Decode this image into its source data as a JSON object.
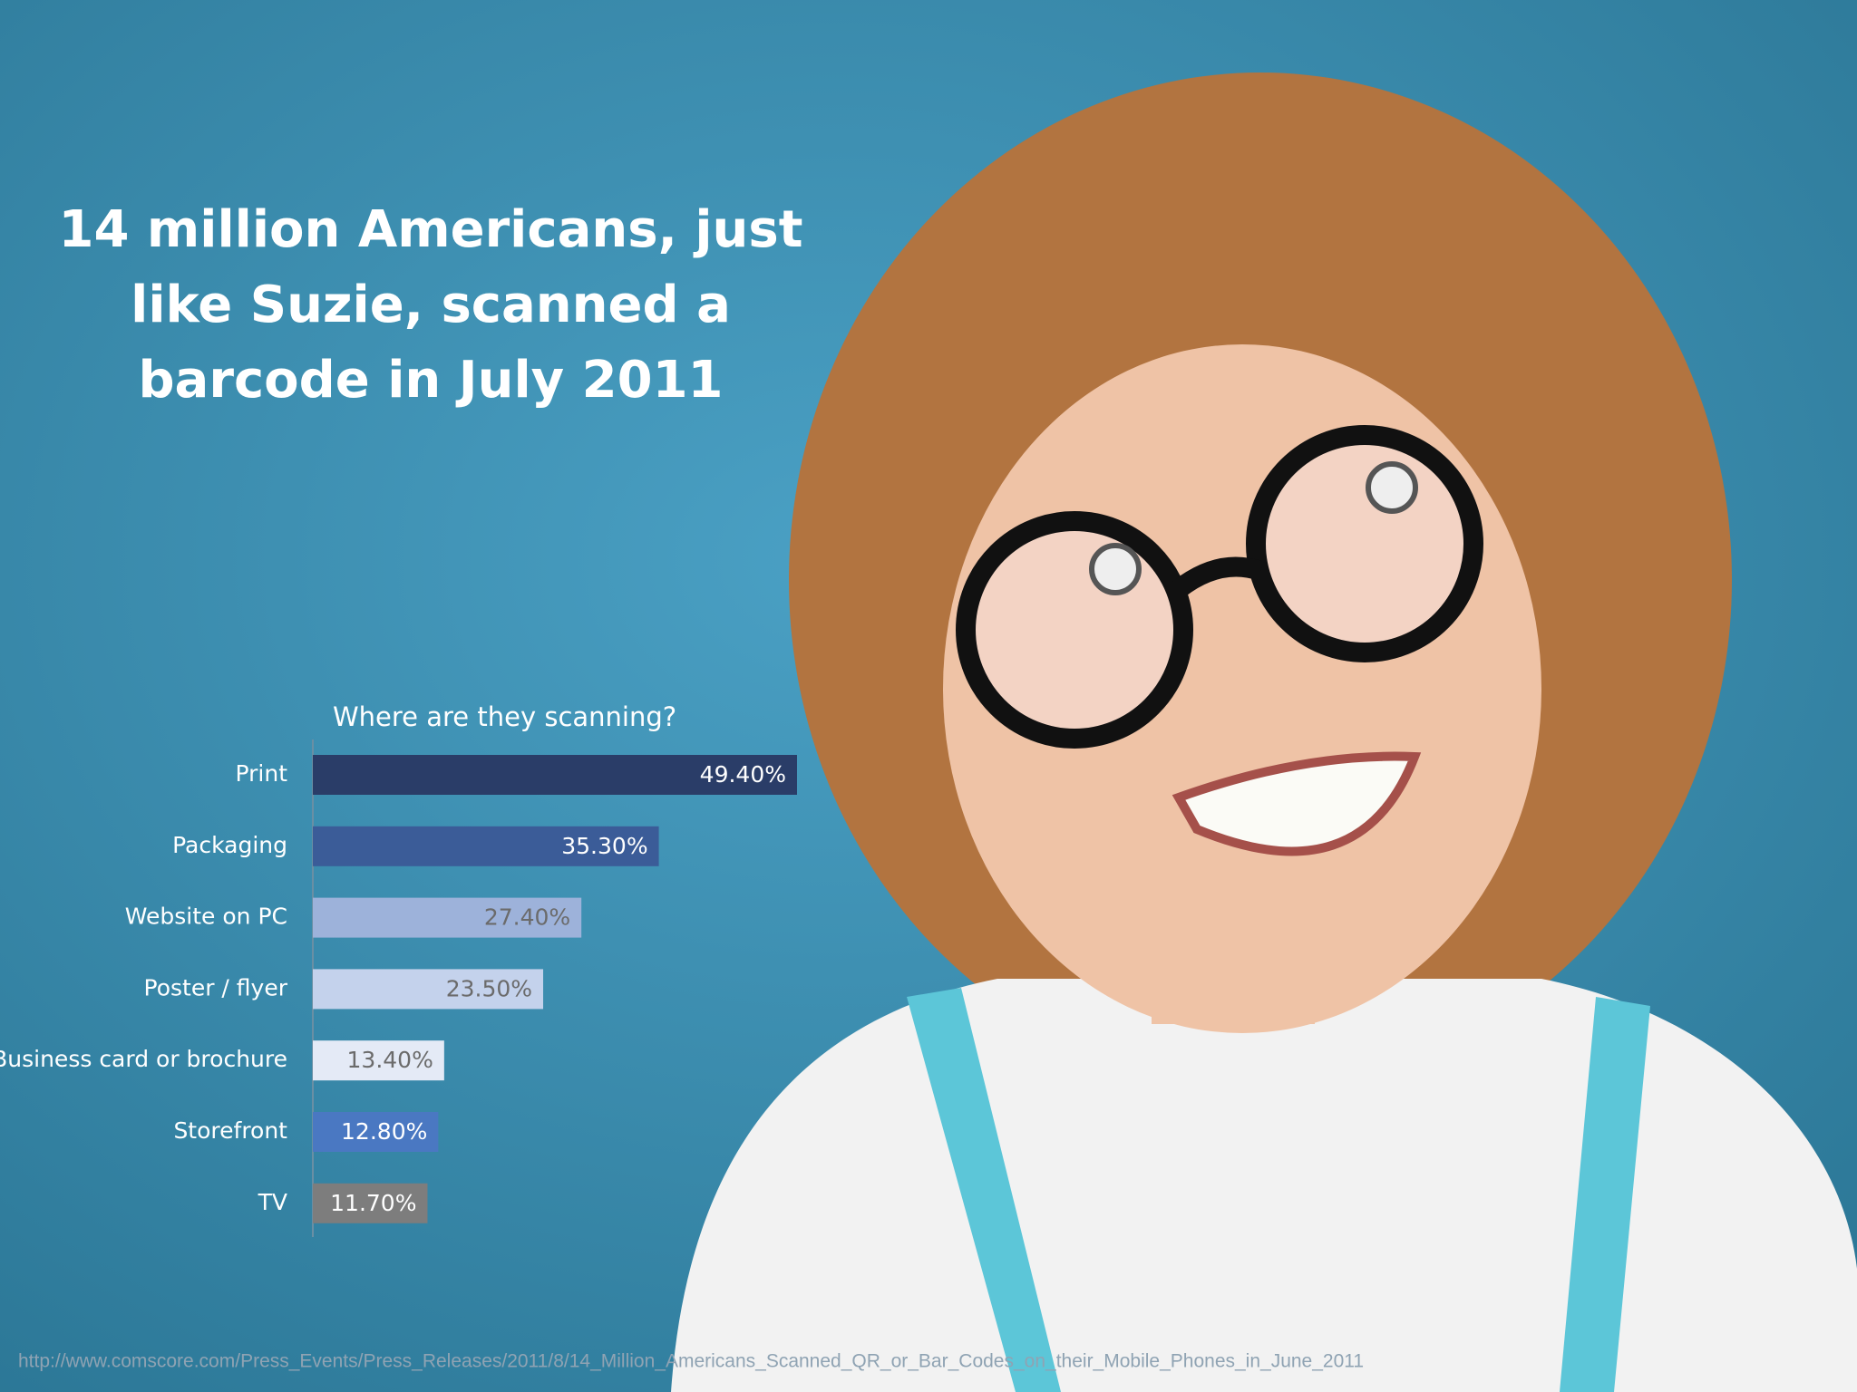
{
  "slide": {
    "headline": [
      "14 million Americans, just",
      "like Suzie, scanned a",
      "barcode in July 2011"
    ],
    "source": "http://www.comscore.com/Press_Events/Press_Releases/2011/8/14_Million_Americans_Scanned_QR_or_Bar_Codes_on_their_Mobile_Phones_in_June_2011"
  },
  "chart_data": {
    "type": "bar",
    "orientation": "horizontal",
    "title": "Where are they scanning?",
    "categories": [
      "Print",
      "Packaging",
      "Website on PC",
      "Poster / flyer",
      "Business card or brochure",
      "Storefront",
      "TV"
    ],
    "values": [
      49.4,
      35.3,
      27.4,
      23.5,
      13.4,
      12.8,
      11.7
    ],
    "value_labels": [
      "49.40%",
      "35.30%",
      "27.40%",
      "23.50%",
      "13.40%",
      "12.80%",
      "11.70%"
    ],
    "colors": [
      "#2a3d68",
      "#3b5c98",
      "#9db2da",
      "#c4d2ec",
      "#e4eaf6",
      "#4a78c2",
      "#7d7d7d"
    ]
  }
}
